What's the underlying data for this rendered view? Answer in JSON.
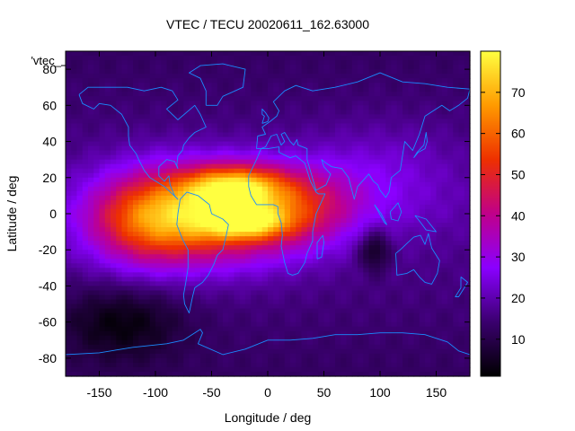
{
  "chart_data": {
    "type": "heatmap",
    "title": "VTEC / TECU 20020611_162.63000",
    "xlabel": "Longitude / deg",
    "ylabel": "Latitude / deg",
    "series_label": "'vtec_",
    "xlim": [
      -180,
      180
    ],
    "ylim": [
      -90,
      90
    ],
    "x_ticks": [
      -150,
      -100,
      -50,
      0,
      50,
      100,
      150
    ],
    "y_ticks": [
      -80,
      -60,
      -40,
      -20,
      0,
      20,
      40,
      60,
      80
    ],
    "colorbar": {
      "range": [
        1,
        80
      ],
      "ticks": [
        10,
        20,
        30,
        40,
        50,
        60,
        70
      ],
      "stops": [
        "#000000",
        "#3a006e",
        "#8a00ff",
        "#c0008a",
        "#ee3000",
        "#ff9a00",
        "#ffff40"
      ]
    },
    "background_vtec": 18,
    "features": [
      {
        "name": "equatorial-anomaly-main",
        "lon": -50,
        "lat": 0,
        "peak": 48,
        "sigma_lon": 60,
        "sigma_lat": 18
      },
      {
        "name": "anomaly-crest-north",
        "lon": -30,
        "lat": 15,
        "peak": 34,
        "sigma_lon": 30,
        "sigma_lat": 8
      },
      {
        "name": "anomaly-crest-south",
        "lon": -20,
        "lat": -5,
        "peak": 28,
        "sigma_lon": 26,
        "sigma_lat": 6
      },
      {
        "name": "africa-extension",
        "lon": 30,
        "lat": 5,
        "peak": 16,
        "sigma_lon": 35,
        "sigma_lat": 14
      },
      {
        "name": "pacific-extension",
        "lon": -110,
        "lat": -5,
        "peak": 22,
        "sigma_lon": 35,
        "sigma_lat": 18
      },
      {
        "name": "asia-belt",
        "lon": 100,
        "lat": 20,
        "peak": 8,
        "sigma_lon": 50,
        "sigma_lat": 20
      },
      {
        "name": "southern-low",
        "lon": -130,
        "lat": -60,
        "peak": -12,
        "sigma_lon": 40,
        "sigma_lat": 15
      },
      {
        "name": "indian-ocean-low",
        "lon": 95,
        "lat": -20,
        "peak": -14,
        "sigma_lon": 10,
        "sigma_lat": 8
      }
    ],
    "coastlines": [
      {
        "name": "north-america",
        "points": [
          [
            -168,
            66
          ],
          [
            -160,
            70
          ],
          [
            -140,
            70
          ],
          [
            -125,
            70
          ],
          [
            -110,
            68
          ],
          [
            -95,
            70
          ],
          [
            -85,
            68
          ],
          [
            -80,
            63
          ],
          [
            -90,
            58
          ],
          [
            -80,
            52
          ],
          [
            -65,
            60
          ],
          [
            -60,
            55
          ],
          [
            -55,
            48
          ],
          [
            -65,
            45
          ],
          [
            -70,
            42
          ],
          [
            -75,
            38
          ],
          [
            -76,
            35
          ],
          [
            -80,
            32
          ],
          [
            -81,
            27
          ],
          [
            -80,
            25
          ],
          [
            -83,
            29
          ],
          [
            -90,
            30
          ],
          [
            -97,
            26
          ],
          [
            -97,
            21
          ],
          [
            -92,
            18
          ],
          [
            -88,
            21
          ],
          [
            -87,
            16
          ],
          [
            -83,
            10
          ],
          [
            -80,
            8
          ],
          [
            -85,
            11
          ],
          [
            -92,
            15
          ],
          [
            -105,
            20
          ],
          [
            -110,
            24
          ],
          [
            -115,
            30
          ],
          [
            -117,
            33
          ],
          [
            -123,
            38
          ],
          [
            -124,
            43
          ],
          [
            -124,
            48
          ],
          [
            -130,
            55
          ],
          [
            -140,
            60
          ],
          [
            -150,
            61
          ],
          [
            -155,
            58
          ],
          [
            -165,
            61
          ],
          [
            -168,
            66
          ]
        ]
      },
      {
        "name": "south-america",
        "points": [
          [
            -78,
            8
          ],
          [
            -72,
            12
          ],
          [
            -62,
            10
          ],
          [
            -52,
            5
          ],
          [
            -50,
            0
          ],
          [
            -40,
            -3
          ],
          [
            -35,
            -6
          ],
          [
            -37,
            -12
          ],
          [
            -40,
            -20
          ],
          [
            -45,
            -23
          ],
          [
            -48,
            -28
          ],
          [
            -53,
            -34
          ],
          [
            -58,
            -38
          ],
          [
            -65,
            -41
          ],
          [
            -67,
            -46
          ],
          [
            -69,
            -52
          ],
          [
            -70,
            -55
          ],
          [
            -74,
            -50
          ],
          [
            -75,
            -45
          ],
          [
            -73,
            -38
          ],
          [
            -71,
            -30
          ],
          [
            -71,
            -20
          ],
          [
            -76,
            -14
          ],
          [
            -81,
            -6
          ],
          [
            -80,
            0
          ],
          [
            -78,
            8
          ]
        ]
      },
      {
        "name": "greenland",
        "points": [
          [
            -55,
            60
          ],
          [
            -45,
            60
          ],
          [
            -40,
            65
          ],
          [
            -22,
            70
          ],
          [
            -20,
            80
          ],
          [
            -40,
            83
          ],
          [
            -60,
            82
          ],
          [
            -70,
            78
          ],
          [
            -60,
            75
          ],
          [
            -55,
            68
          ],
          [
            -55,
            60
          ]
        ]
      },
      {
        "name": "africa",
        "points": [
          [
            -17,
            21
          ],
          [
            -17,
            15
          ],
          [
            -15,
            10
          ],
          [
            -10,
            5
          ],
          [
            -5,
            5
          ],
          [
            5,
            5
          ],
          [
            9,
            4
          ],
          [
            9,
            0
          ],
          [
            12,
            -5
          ],
          [
            13,
            -12
          ],
          [
            12,
            -18
          ],
          [
            15,
            -27
          ],
          [
            18,
            -33
          ],
          [
            22,
            -34
          ],
          [
            27,
            -33
          ],
          [
            33,
            -27
          ],
          [
            35,
            -22
          ],
          [
            40,
            -15
          ],
          [
            40,
            -10
          ],
          [
            43,
            0
          ],
          [
            51,
            11
          ],
          [
            45,
            11
          ],
          [
            43,
            12
          ],
          [
            38,
            18
          ],
          [
            33,
            28
          ],
          [
            25,
            32
          ],
          [
            20,
            31
          ],
          [
            10,
            34
          ],
          [
            10,
            37
          ],
          [
            0,
            36
          ],
          [
            -6,
            36
          ],
          [
            -10,
            30
          ],
          [
            -17,
            21
          ]
        ]
      },
      {
        "name": "eurasia",
        "points": [
          [
            -10,
            36
          ],
          [
            -9,
            43
          ],
          [
            -2,
            44
          ],
          [
            -5,
            48
          ],
          [
            2,
            51
          ],
          [
            8,
            54
          ],
          [
            10,
            57
          ],
          [
            5,
            62
          ],
          [
            15,
            68
          ],
          [
            25,
            71
          ],
          [
            40,
            68
          ],
          [
            60,
            70
          ],
          [
            80,
            73
          ],
          [
            100,
            78
          ],
          [
            120,
            73
          ],
          [
            140,
            72
          ],
          [
            160,
            70
          ],
          [
            180,
            69
          ],
          [
            178,
            64
          ],
          [
            170,
            60
          ],
          [
            162,
            57
          ],
          [
            155,
            60
          ],
          [
            140,
            54
          ],
          [
            135,
            44
          ],
          [
            129,
            35
          ],
          [
            122,
            40
          ],
          [
            120,
            32
          ],
          [
            118,
            24
          ],
          [
            110,
            20
          ],
          [
            108,
            12
          ],
          [
            105,
            9
          ],
          [
            100,
            13
          ],
          [
            98,
            16
          ],
          [
            94,
            18
          ],
          [
            90,
            22
          ],
          [
            80,
            15
          ],
          [
            77,
            8
          ],
          [
            72,
            20
          ],
          [
            66,
            25
          ],
          [
            57,
            26
          ],
          [
            52,
            28
          ],
          [
            48,
            30
          ],
          [
            50,
            26
          ],
          [
            56,
            22
          ],
          [
            52,
            16
          ],
          [
            43,
            13
          ],
          [
            35,
            30
          ],
          [
            35,
            36
          ],
          [
            27,
            38
          ],
          [
            26,
            41
          ],
          [
            23,
            38
          ],
          [
            20,
            40
          ],
          [
            15,
            45
          ],
          [
            12,
            44
          ],
          [
            15,
            40
          ],
          [
            12,
            38
          ],
          [
            8,
            44
          ],
          [
            3,
            43
          ],
          [
            -2,
            37
          ],
          [
            -6,
            36
          ],
          [
            -10,
            36
          ]
        ]
      },
      {
        "name": "british-isles",
        "points": [
          [
            -5,
            50
          ],
          [
            0,
            51
          ],
          [
            1,
            53
          ],
          [
            -2,
            56
          ],
          [
            -5,
            58
          ],
          [
            -5,
            55
          ],
          [
            -3,
            54
          ],
          [
            -5,
            50
          ]
        ]
      },
      {
        "name": "madagascar",
        "points": [
          [
            44,
            -25
          ],
          [
            48,
            -24
          ],
          [
            50,
            -16
          ],
          [
            49,
            -12
          ],
          [
            44,
            -16
          ],
          [
            44,
            -25
          ]
        ]
      },
      {
        "name": "australia",
        "points": [
          [
            114,
            -22
          ],
          [
            118,
            -20
          ],
          [
            123,
            -17
          ],
          [
            130,
            -13
          ],
          [
            136,
            -12
          ],
          [
            140,
            -17
          ],
          [
            143,
            -11
          ],
          [
            146,
            -19
          ],
          [
            153,
            -26
          ],
          [
            151,
            -33
          ],
          [
            146,
            -39
          ],
          [
            140,
            -38
          ],
          [
            135,
            -35
          ],
          [
            130,
            -31
          ],
          [
            124,
            -33
          ],
          [
            115,
            -34
          ],
          [
            114,
            -22
          ]
        ]
      },
      {
        "name": "new-zealand",
        "points": [
          [
            172,
            -35
          ],
          [
            178,
            -38
          ],
          [
            175,
            -41
          ],
          [
            170,
            -46
          ],
          [
            167,
            -46
          ],
          [
            172,
            -41
          ],
          [
            172,
            -35
          ]
        ]
      },
      {
        "name": "japan",
        "points": [
          [
            130,
            31
          ],
          [
            134,
            34
          ],
          [
            140,
            36
          ],
          [
            142,
            40
          ],
          [
            141,
            45
          ],
          [
            139,
            38
          ],
          [
            133,
            34
          ],
          [
            130,
            31
          ]
        ]
      },
      {
        "name": "borneo-sumatra",
        "points": [
          [
            95,
            5
          ],
          [
            104,
            -5
          ],
          [
            106,
            -6
          ],
          [
            101,
            0
          ],
          [
            95,
            5
          ]
        ]
      },
      {
        "name": "borneo",
        "points": [
          [
            109,
            1
          ],
          [
            116,
            6
          ],
          [
            119,
            1
          ],
          [
            116,
            -4
          ],
          [
            110,
            -3
          ],
          [
            109,
            1
          ]
        ]
      },
      {
        "name": "new-guinea",
        "points": [
          [
            131,
            -1
          ],
          [
            141,
            -3
          ],
          [
            150,
            -10
          ],
          [
            141,
            -9
          ],
          [
            135,
            -4
          ],
          [
            131,
            -1
          ]
        ]
      },
      {
        "name": "antarctica",
        "points": [
          [
            -180,
            -78
          ],
          [
            -150,
            -77
          ],
          [
            -120,
            -74
          ],
          [
            -90,
            -72
          ],
          [
            -75,
            -70
          ],
          [
            -60,
            -64
          ],
          [
            -58,
            -66
          ],
          [
            -62,
            -72
          ],
          [
            -40,
            -78
          ],
          [
            -20,
            -75
          ],
          [
            0,
            -70
          ],
          [
            20,
            -70
          ],
          [
            40,
            -69
          ],
          [
            60,
            -67
          ],
          [
            80,
            -67
          ],
          [
            100,
            -66
          ],
          [
            120,
            -66
          ],
          [
            140,
            -67
          ],
          [
            160,
            -71
          ],
          [
            170,
            -76
          ],
          [
            180,
            -78
          ]
        ]
      }
    ]
  }
}
